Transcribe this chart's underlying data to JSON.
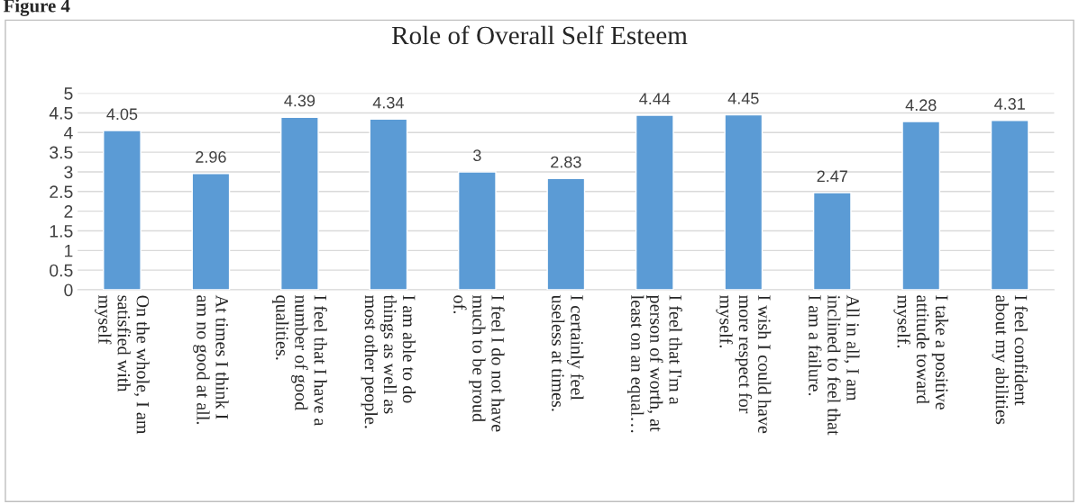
{
  "chart_data": {
    "type": "bar",
    "title": "Role of Overall Self Esteem",
    "categories": [
      "On the whole, I am\nsatisfied with\nmyself",
      "At times I think I\nam no good at all.",
      "I feel that I have a\nnumber of good\nqualities.",
      "I am able to do\nthings as well as\nmost other people.",
      "I feel I do not have\nmuch to be proud\nof.",
      "I certainly feel\nuseless at times.",
      "I feel that I'm a\nperson of worth, at\nleast on an equal…",
      "I wish I could have\nmore respect for\nmyself.",
      "All in all, I am\ninclined to feel that\nI am a failure.",
      "I take a positive\nattitude toward\nmyself.",
      "I feel confident\nabout my abilities"
    ],
    "values": [
      4.05,
      2.96,
      4.39,
      4.34,
      3,
      2.83,
      4.44,
      4.45,
      2.47,
      4.28,
      4.31
    ],
    "color": "#5b9bd5",
    "ylim": [
      0,
      5
    ],
    "yticks": [
      0,
      0.5,
      1,
      1.5,
      2,
      2.5,
      3,
      3.5,
      4,
      4.5,
      5
    ],
    "grid": "y",
    "data_labels": true,
    "legend": false,
    "annotations": [
      "Figure 4"
    ]
  }
}
